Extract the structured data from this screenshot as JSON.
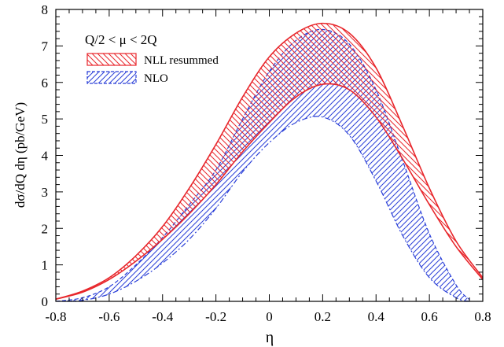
{
  "chart_data": {
    "type": "area",
    "xlabel": "η",
    "ylabel": "dσ/dQ dη (pb/GeV)",
    "xlim": [
      -0.8,
      0.8
    ],
    "ylim": [
      0,
      8
    ],
    "xticks": [
      -0.8,
      -0.6,
      -0.4,
      -0.2,
      0,
      0.2,
      0.4,
      0.6,
      0.8
    ],
    "xtick_labels": [
      "-0.8",
      "-0.6",
      "-0.4",
      "-0.2",
      "0",
      "0.2",
      "0.4",
      "0.6",
      "0.8"
    ],
    "yticks": [
      0,
      1,
      2,
      3,
      4,
      5,
      6,
      7,
      8
    ],
    "ytick_labels": [
      "0",
      "1",
      "2",
      "3",
      "4",
      "5",
      "6",
      "7",
      "8"
    ],
    "grid": false,
    "legend_position": "top-left",
    "annotation": "Q/2 < μ < 2Q",
    "series": [
      {
        "name": "NLL resummed",
        "color": "#e8262b",
        "hatch": "diagonal-down",
        "x": [
          -0.8,
          -0.7,
          -0.6,
          -0.5,
          -0.4,
          -0.3,
          -0.2,
          -0.1,
          0.0,
          0.1,
          0.2,
          0.3,
          0.4,
          0.5,
          0.6,
          0.7,
          0.8
        ],
        "upper": [
          0.06,
          0.28,
          0.65,
          1.25,
          2.05,
          3.1,
          4.3,
          5.6,
          6.7,
          7.35,
          7.62,
          7.35,
          6.4,
          4.8,
          3.1,
          1.65,
          0.65
        ],
        "lower": [
          0.06,
          0.25,
          0.6,
          1.1,
          1.7,
          2.4,
          3.2,
          4.1,
          4.9,
          5.6,
          5.95,
          5.8,
          5.05,
          3.9,
          2.65,
          1.5,
          0.6
        ]
      },
      {
        "name": "NLO",
        "color": "#2a3fd8",
        "hatch": "diagonal-up",
        "x": [
          -0.8,
          -0.7,
          -0.6,
          -0.5,
          -0.4,
          -0.3,
          -0.2,
          -0.1,
          0.0,
          0.1,
          0.2,
          0.3,
          0.4,
          0.5,
          0.6,
          0.7,
          0.75
        ],
        "upper": [
          0.0,
          0.1,
          0.4,
          1.0,
          1.75,
          2.65,
          3.6,
          5.0,
          6.3,
          7.15,
          7.45,
          7.05,
          5.8,
          3.85,
          1.85,
          0.45,
          0.05
        ],
        "lower": [
          0.0,
          0.03,
          0.2,
          0.55,
          1.05,
          1.7,
          2.55,
          3.55,
          4.35,
          4.9,
          5.05,
          4.55,
          3.3,
          1.8,
          0.65,
          0.1,
          0.0
        ]
      }
    ]
  }
}
